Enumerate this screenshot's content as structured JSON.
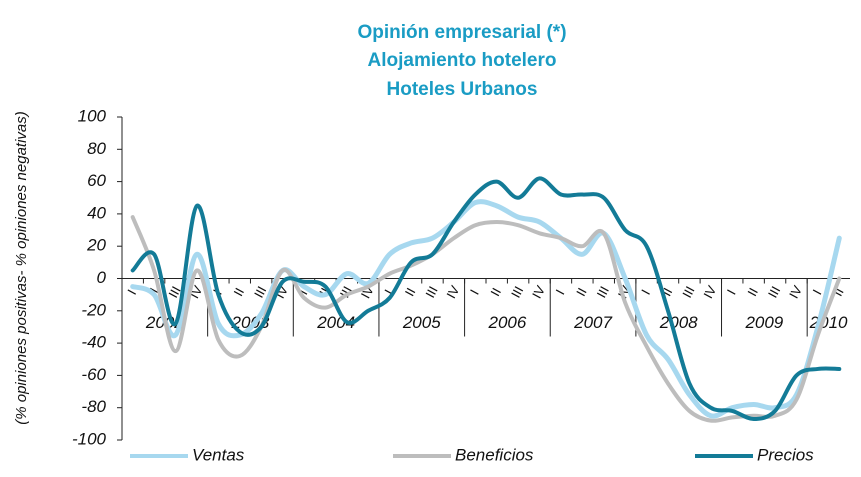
{
  "chart_data": {
    "type": "line",
    "title": [
      "Opinión empresarial (*)",
      "Alojamiento hotelero",
      "Hoteles Urbanos"
    ],
    "y_label": "(% opiniones positivas- % opiniones negativas)",
    "categories": [
      "I",
      "II",
      "III",
      "IV",
      "I",
      "II",
      "III",
      "IV",
      "I",
      "II",
      "III",
      "IV",
      "I",
      "II",
      "III",
      "IV",
      "I",
      "II",
      "III",
      "IV",
      "I",
      "II",
      "III",
      "IV",
      "I",
      "II",
      "III",
      "IV",
      "I",
      "II",
      "III",
      "IV",
      "I",
      "II"
    ],
    "years": [
      "2002",
      "2003",
      "2004",
      "2005",
      "2006",
      "2007",
      "2008",
      "2009",
      "2010"
    ],
    "ylim": [
      -100,
      100
    ],
    "yticks": [
      100,
      80,
      60,
      40,
      20,
      0,
      -20,
      -40,
      -60,
      -80,
      -100
    ],
    "legend": "bottom",
    "series": [
      {
        "name": "Ventas",
        "color": "#a7d8ef",
        "values": [
          -5,
          -10,
          -35,
          15,
          -28,
          -35,
          -22,
          5,
          -5,
          -10,
          3,
          -3,
          15,
          22,
          25,
          35,
          47,
          45,
          38,
          35,
          25,
          15,
          28,
          0,
          -35,
          -50,
          -72,
          -85,
          -80,
          -78,
          -80,
          -72,
          -30,
          25
        ]
      },
      {
        "name": "Beneficios",
        "color": "#bdbdbd",
        "values": [
          38,
          5,
          -45,
          5,
          -38,
          -48,
          -30,
          5,
          -12,
          -18,
          -10,
          -5,
          3,
          8,
          15,
          25,
          33,
          35,
          33,
          28,
          25,
          20,
          28,
          -15,
          -42,
          -65,
          -82,
          -88,
          -86,
          -85,
          -85,
          -75,
          -35,
          0
        ]
      },
      {
        "name": "Precios",
        "color": "#137b97",
        "values": [
          5,
          15,
          -28,
          45,
          -10,
          -33,
          -30,
          -2,
          -2,
          -5,
          -27,
          -20,
          -12,
          10,
          15,
          35,
          52,
          60,
          50,
          62,
          52,
          52,
          50,
          30,
          20,
          -20,
          -65,
          -80,
          -82,
          -87,
          -82,
          -60,
          -56,
          -56
        ]
      }
    ]
  }
}
